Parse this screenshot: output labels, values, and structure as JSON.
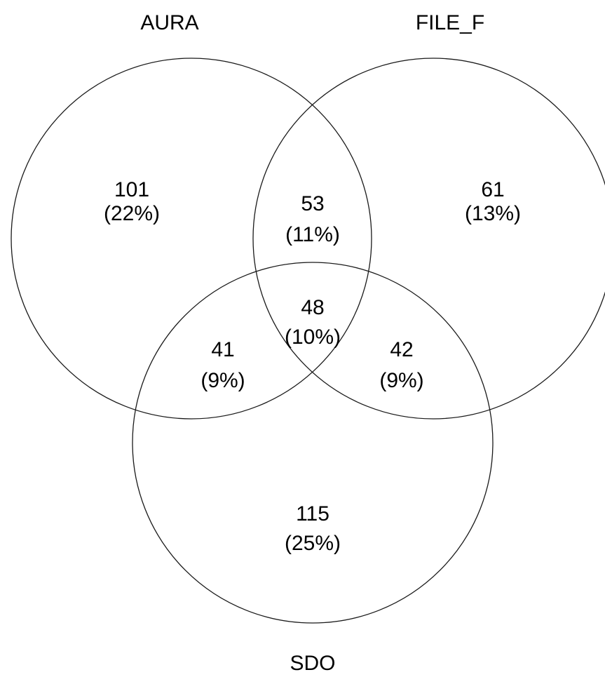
{
  "sets": {
    "aura": {
      "label": "AURA"
    },
    "file_f": {
      "label": "FILE_F"
    },
    "sdo": {
      "label": "SDO"
    }
  },
  "regions": {
    "aura_only": {
      "count": "101",
      "percent": "(22%)"
    },
    "file_f_only": {
      "count": "61",
      "percent": "(13%)"
    },
    "sdo_only": {
      "count": "115",
      "percent": "(25%)"
    },
    "aura_file_f": {
      "count": "53",
      "percent": "(11%)"
    },
    "aura_sdo": {
      "count": "41",
      "percent": "(9%)"
    },
    "file_f_sdo": {
      "count": "42",
      "percent": "(9%)"
    },
    "all_three": {
      "count": "48",
      "percent": "(10%)"
    }
  },
  "colors": {
    "stroke": "#1a1a1a",
    "text": "#000000",
    "background": "#ffffff"
  }
}
